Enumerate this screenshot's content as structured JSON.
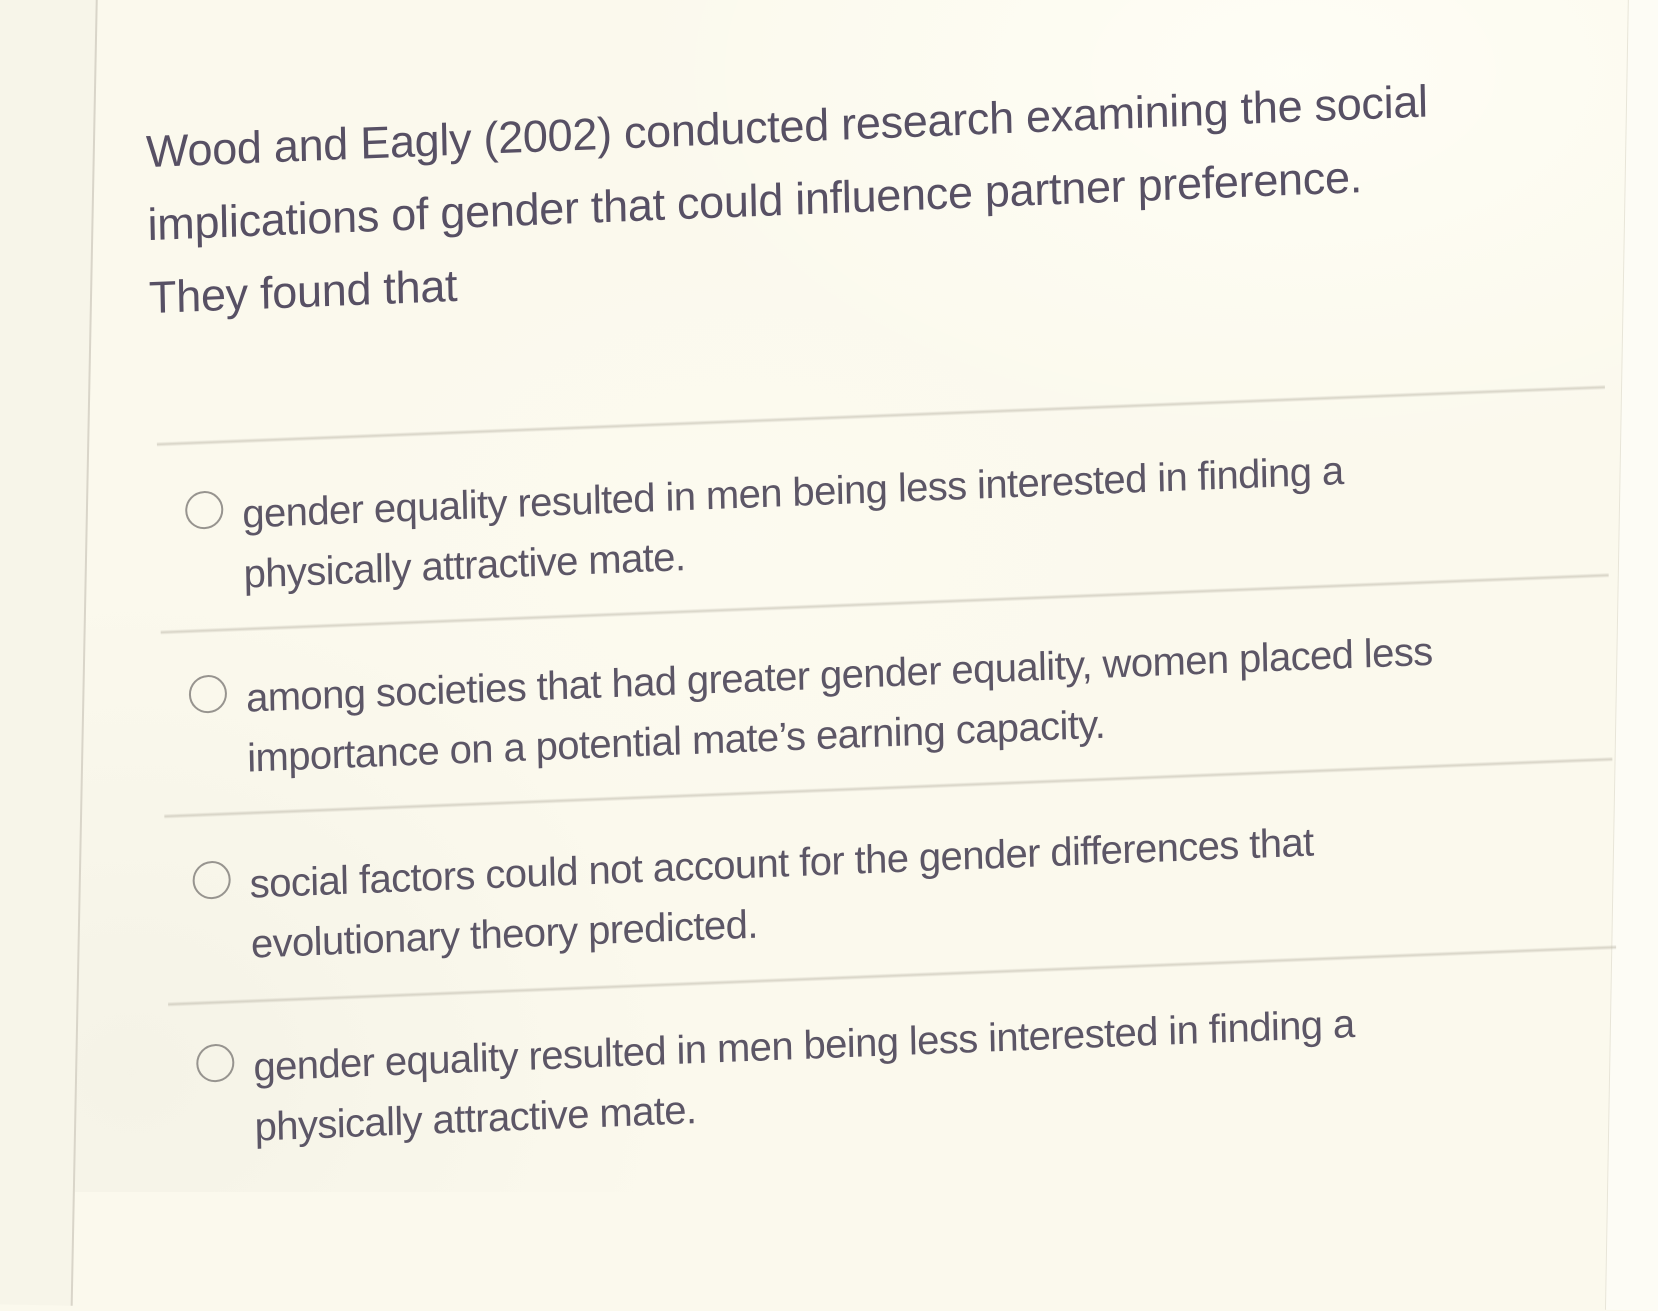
{
  "question": {
    "lines": [
      "Wood and Eagly (2002) conducted research examining the social",
      "implications of gender that could influence partner preference.",
      "They found that"
    ]
  },
  "options": [
    {
      "selected": false,
      "lines": [
        "gender equality resulted in men being less interested in finding a",
        "physically attractive mate."
      ]
    },
    {
      "selected": false,
      "lines": [
        "among societies that had greater gender equality, women placed less",
        "importance on a potential mate’s earning capacity."
      ]
    },
    {
      "selected": false,
      "lines": [
        "social factors could not account for the gender differences that",
        "evolutionary theory predicted."
      ]
    },
    {
      "selected": false,
      "lines": [
        "gender equality resulted in men being less interested in finding a",
        "physically attractive mate."
      ]
    }
  ],
  "colors": {
    "background": "#fbf9ed",
    "text": "#5c5666",
    "question_text": "#575064",
    "divider": "#bab5a7",
    "radio_border": "#97948f",
    "page_edge_line": "#d9d5c9"
  }
}
